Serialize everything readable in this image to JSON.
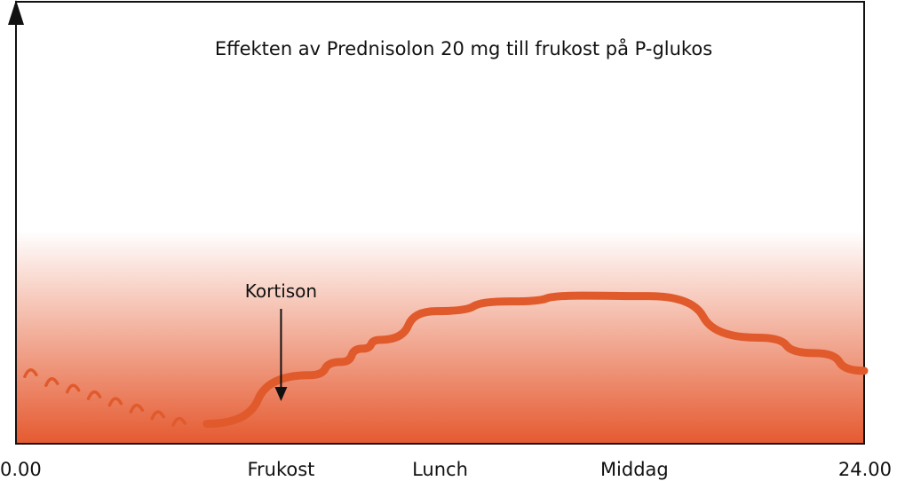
{
  "chart_data": {
    "type": "line",
    "title": "Effekten av Prednisolon 20 mg till frukost på P-glukos",
    "xlabel": "",
    "ylabel": "",
    "x_ticks": [
      {
        "label": "0.00",
        "x": 0
      },
      {
        "label": "Frukost",
        "x": 7.5
      },
      {
        "label": "Lunch",
        "x": 12
      },
      {
        "label": "Middag",
        "x": 17.5
      },
      {
        "label": "24.00",
        "x": 24
      }
    ],
    "xlim": [
      0,
      24
    ],
    "ylim": [
      0,
      10
    ],
    "annotation": {
      "text": "Kortison",
      "x": 7.5
    },
    "series": [
      {
        "style": "dashed-arcs",
        "color": "#e05a2b",
        "points": [
          {
            "x": 0.4,
            "y": 1.6
          },
          {
            "x": 1.0,
            "y": 1.4
          },
          {
            "x": 1.6,
            "y": 1.25
          },
          {
            "x": 2.2,
            "y": 1.1
          },
          {
            "x": 2.8,
            "y": 0.95
          },
          {
            "x": 3.4,
            "y": 0.8
          },
          {
            "x": 4.0,
            "y": 0.65
          },
          {
            "x": 4.6,
            "y": 0.5
          }
        ]
      },
      {
        "style": "solid",
        "color": "#e05a2b",
        "points": [
          {
            "x": 5.4,
            "y": 0.45
          },
          {
            "x": 8.3,
            "y": 1.55
          },
          {
            "x": 9.2,
            "y": 1.85
          },
          {
            "x": 9.8,
            "y": 2.15
          },
          {
            "x": 10.3,
            "y": 2.35
          },
          {
            "x": 11.9,
            "y": 3.0
          },
          {
            "x": 14.0,
            "y": 3.22
          },
          {
            "x": 16.0,
            "y": 3.35
          },
          {
            "x": 17.9,
            "y": 3.34
          },
          {
            "x": 21.0,
            "y": 2.4
          },
          {
            "x": 22.6,
            "y": 2.05
          },
          {
            "x": 24.0,
            "y": 1.65
          }
        ]
      }
    ],
    "grid": false,
    "colors": {
      "line": "#e05a2b",
      "gradient_bottom": "#e55a30",
      "gradient_top": "#ffffff"
    }
  }
}
